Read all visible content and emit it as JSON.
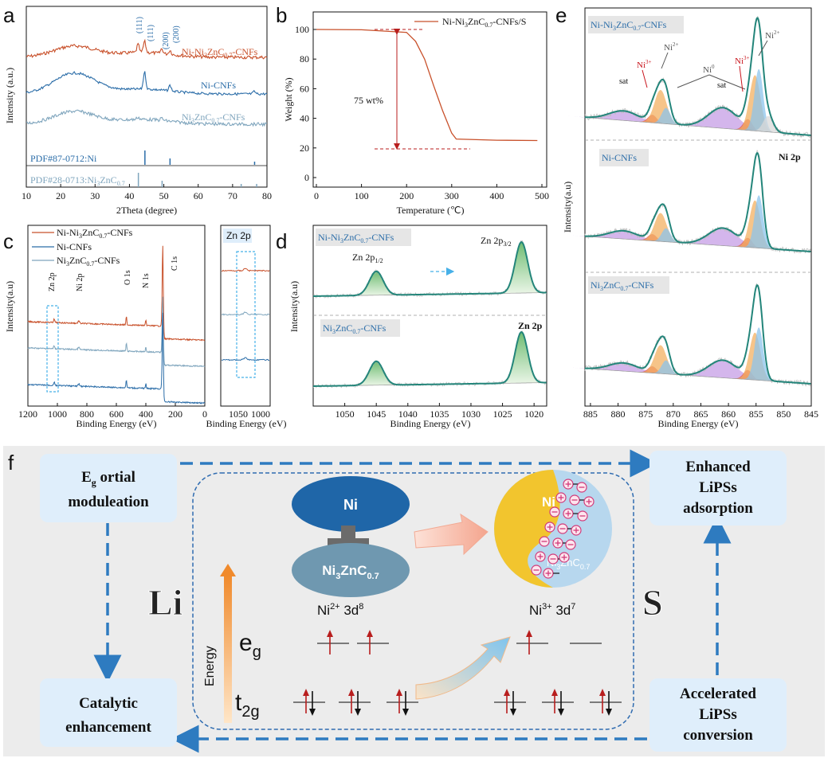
{
  "colors": {
    "ni_ni3znc": "#c8502a",
    "ni_cnfs": "#2b6da8",
    "ni3znc": "#7fa5bd",
    "green_fit": "#23857a",
    "dash_blue": "#2e7bc0",
    "box_fill": "#dfeefb",
    "orange_peak": "#f3b061",
    "blue_peak": "#8cc4ec",
    "purple_peak": "#c59ee6",
    "red_peak": "#e3524d",
    "arrow_red": "#b81e1e",
    "ni_ellipse": "#1f66a8",
    "ni3znc_ellipse": "#6f98b0",
    "sphere_yellow": "#f2c52e",
    "sphere_blue": "#b7d7ee"
  },
  "panels": {
    "a": {
      "letter": "a"
    },
    "b": {
      "letter": "b"
    },
    "c": {
      "letter": "c"
    },
    "d": {
      "letter": "d"
    },
    "e": {
      "letter": "e"
    },
    "f": {
      "letter": "f"
    }
  },
  "chart_data": [
    {
      "id": "a",
      "type": "line",
      "title": "",
      "xlabel": "2Theta (degree)",
      "ylabel": "Intensity (a.u.)",
      "xlim": [
        10,
        80
      ],
      "xticks": [
        "10",
        "20",
        "30",
        "40",
        "50",
        "60",
        "70",
        "80"
      ],
      "series": [
        {
          "name": "Ni-Ni3ZnC0.7-CNFs",
          "label_html": "Ni-Ni<tspan font-size='8' dy='3'>3</tspan><tspan dy='-3'>ZnC</tspan><tspan font-size='8' dy='3'>0.7</tspan><tspan dy='-3'>-CNFs</tspan>"
        },
        {
          "name": "Ni-CNFs",
          "label_html": "Ni-CNFs"
        },
        {
          "name": "Ni3ZnC0.7-CNFs",
          "label_html": "Ni<tspan font-size='8' dy='3'>3</tspan><tspan dy='-3'>ZnC</tspan><tspan font-size='8' dy='3'>0.7</tspan><tspan dy='-3'>-CNFs</tspan>"
        }
      ],
      "peak_labels": [
        "(111)",
        "(111)",
        "(200)",
        "(200)"
      ],
      "references": [
        {
          "name": "PDF#87-0712:Ni",
          "label": "PDF#87-0712:Ni"
        },
        {
          "name": "PDF#28-0713:Ni3ZnC0.7",
          "label": "PDF#28-0713:Ni3ZnC0.7"
        }
      ]
    },
    {
      "id": "b",
      "type": "line",
      "xlabel": "Temperature (℃)",
      "ylabel": "Weight (%)",
      "xlim": [
        0,
        500
      ],
      "ylim": [
        0,
        100
      ],
      "xticks": [
        "0",
        "100",
        "200",
        "300",
        "400",
        "500"
      ],
      "yticks": [
        "0",
        "20",
        "40",
        "60",
        "80",
        "100"
      ],
      "legend": "Ni-Ni3ZnC0.7-CNFs/S",
      "annotation": "75 wt%",
      "x": [
        0,
        100,
        200,
        220,
        240,
        260,
        280,
        300,
        310,
        400,
        490
      ],
      "values": [
        100,
        99.8,
        98,
        92,
        80,
        62,
        45,
        30,
        26,
        25.2,
        25
      ]
    },
    {
      "id": "c",
      "type": "line",
      "xlabel": "Binding Energy (eV)",
      "ylabel": "Intensity(a.u)",
      "xlim": [
        1200,
        0
      ],
      "xticks": [
        "1200",
        "1000",
        "800",
        "600",
        "400",
        "200",
        "0"
      ],
      "legend": [
        "Ni-Ni3ZnC0.7-CNFs",
        "Ni-CNFs",
        "Ni3ZnC0.7-CNFs"
      ],
      "peak_labels": [
        "Zn 2p",
        "Ni 2p",
        "O 1s",
        "N 1s",
        "C 1s"
      ],
      "inset": {
        "title": "Zn 2p",
        "xlabel": "Binding Energy (eV)",
        "xticks": [
          "1050",
          "1000"
        ]
      }
    },
    {
      "id": "d",
      "type": "line",
      "xlabel": "Binding Energy (eV)",
      "ylabel": "Intensity(a.u)",
      "xlim": [
        1055,
        1018
      ],
      "xticks": [
        "1050",
        "1045",
        "1040",
        "1035",
        "1030",
        "1025",
        "1020"
      ],
      "labels": [
        "Ni-Ni3ZnC0.7-CNFs",
        "Ni3ZnC0.7-CNFs"
      ],
      "peak_labels": [
        "Zn 2p1/2",
        "Zn 2p3/2"
      ],
      "corner_label": "Zn 2p",
      "peaks_ev": [
        1045,
        1022
      ]
    },
    {
      "id": "e",
      "type": "line",
      "xlabel": "Binding Energy (eV)",
      "ylabel": "Intensity(a.u)",
      "xlim": [
        886,
        845
      ],
      "xticks": [
        "885",
        "880",
        "875",
        "870",
        "865",
        "860",
        "855",
        "850",
        "845"
      ],
      "labels": [
        "Ni-Ni3ZnC0.7-CNFs",
        "Ni-CNFs",
        "Ni3ZnC0.7-CNFs"
      ],
      "peak_labels": [
        "sat",
        "Ni3+",
        "Ni2+",
        "Ni0",
        "sat",
        "Ni3+",
        "Ni2+"
      ],
      "corner_label": "Ni 2p",
      "peaks_ev": [
        872.5,
        855
      ]
    }
  ],
  "schematic": {
    "left_top_box": {
      "line1": "E",
      "line1_sub": "g",
      "line1_rest": " ortial",
      "line2": "moduleation"
    },
    "left_bottom_box": {
      "line1": "Catalytic",
      "line2": "enhancement"
    },
    "right_top_box": {
      "line1": "Enhanced",
      "line2": "LiPSs",
      "line3": "adsorption"
    },
    "right_bottom_box": {
      "line1": "Accelerated",
      "line2": "LiPSs",
      "line3": "conversion"
    },
    "li_label": "Li",
    "s_label": "S",
    "ni_ellipse": "Ni",
    "ni3znc_ellipse": "Ni3ZnC0.7",
    "sphere_ni": "Ni",
    "sphere_ni3znc": "Ni3ZnC0.7",
    "energy_label": "Energy",
    "eg_label": "e",
    "eg_sub": "g",
    "t2g_label": "t",
    "t2g_sub": "2g",
    "left_config": "Ni",
    "left_config_sup": "2+",
    "left_config_rest": " 3d",
    "left_config_exp": "8",
    "right_config": "Ni",
    "right_config_sup": "3+",
    "right_config_rest": " 3d",
    "right_config_exp": "7"
  }
}
